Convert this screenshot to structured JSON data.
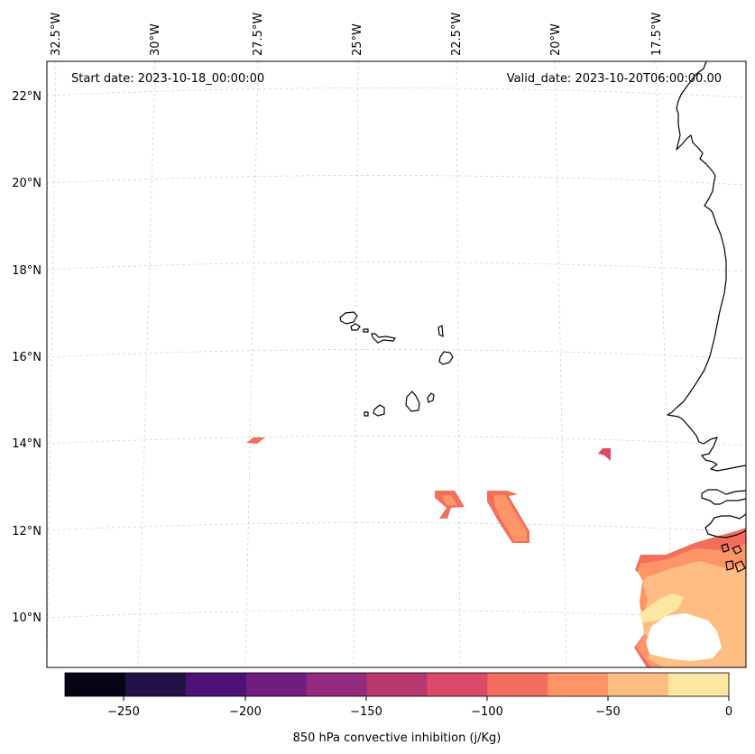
{
  "header": {
    "start_date": "Start date: 2023-10-18_00:00:00",
    "valid_date": "Valid_date: 2023-10-20T06:00:00.00"
  },
  "axes": {
    "longitude_labels": [
      "32.5°W",
      "30°W",
      "27.5°W",
      "25°W",
      "22.5°W",
      "20°W",
      "17.5°W"
    ],
    "latitude_labels": [
      "22°N",
      "20°N",
      "18°N",
      "16°N",
      "14°N",
      "12°N",
      "10°N"
    ]
  },
  "colorbar": {
    "label": "850 hPa convective inhibition (j/Kg)",
    "ticks": [
      "−250",
      "−200",
      "−150",
      "−100",
      "−50",
      "0"
    ],
    "colors": [
      "#060414",
      "#211346",
      "#4d1276",
      "#701d80",
      "#922a7e",
      "#b7376f",
      "#dd4a69",
      "#f36e5c",
      "#fd9566",
      "#febd82",
      "#fde6a2"
    ]
  },
  "chart_data": {
    "type": "map",
    "projection": "lambert-conformal",
    "region": "Cape Verde and West African coast",
    "variable": "850 hPa convective inhibition",
    "units": "j/Kg",
    "lon_range": [
      -33,
      -15.5
    ],
    "lat_range": [
      9,
      22.8
    ],
    "levels": [
      -275,
      -250,
      -225,
      -200,
      -175,
      -150,
      -125,
      -100,
      -75,
      -50,
      -25,
      0
    ],
    "features": [
      {
        "name": "small-patch-west",
        "lat": 14.0,
        "lon": -27.3,
        "value_range": [
          -100,
          -75
        ]
      },
      {
        "name": "small-patch-east",
        "lat": 13.8,
        "lon": -19.4,
        "value_range": [
          -125,
          -100
        ]
      },
      {
        "name": "patch-center-left",
        "lat": 12.5,
        "lon": -22.4,
        "value_range": [
          -100,
          -50
        ]
      },
      {
        "name": "patch-center-right",
        "lat": 12.2,
        "lon": -21.0,
        "value_range": [
          -100,
          -50
        ]
      },
      {
        "name": "coastal-region-southeast",
        "lat": 10.5,
        "lon": -16.0,
        "value_range": [
          -100,
          0
        ]
      }
    ]
  }
}
